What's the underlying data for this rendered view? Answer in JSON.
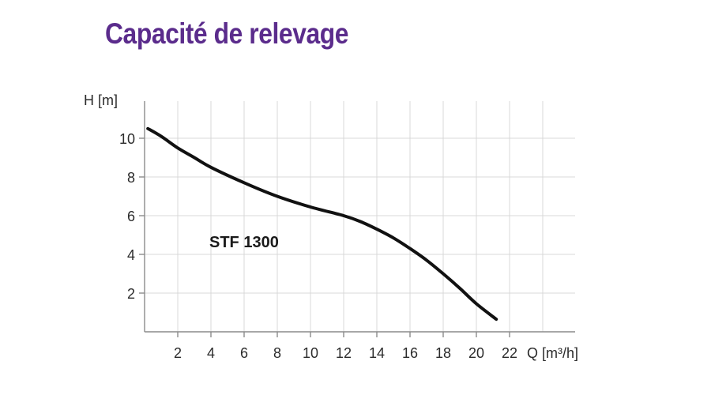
{
  "chart_data": {
    "type": "line",
    "title": "Capacité de relevage",
    "xlabel": "Q [m³/h]",
    "ylabel": "H [m]",
    "xlim": [
      0,
      26
    ],
    "ylim": [
      0,
      12
    ],
    "x_ticks": [
      2,
      4,
      6,
      8,
      10,
      12,
      14,
      16,
      18,
      20,
      22
    ],
    "y_ticks": [
      2,
      4,
      6,
      8,
      10
    ],
    "grid": true,
    "title_color": "#5b2c8c",
    "series": [
      {
        "name": "STF 1300",
        "color": "#111111",
        "x": [
          0.2,
          1,
          2,
          3,
          4,
          6,
          8,
          10,
          12,
          13,
          14,
          15,
          16,
          17,
          18,
          19,
          20,
          21.2
        ],
        "y": [
          10.5,
          10.1,
          9.5,
          9.0,
          8.5,
          7.7,
          7.0,
          6.45,
          6.0,
          5.7,
          5.3,
          4.85,
          4.3,
          3.7,
          3.0,
          2.25,
          1.45,
          0.65
        ]
      }
    ]
  }
}
